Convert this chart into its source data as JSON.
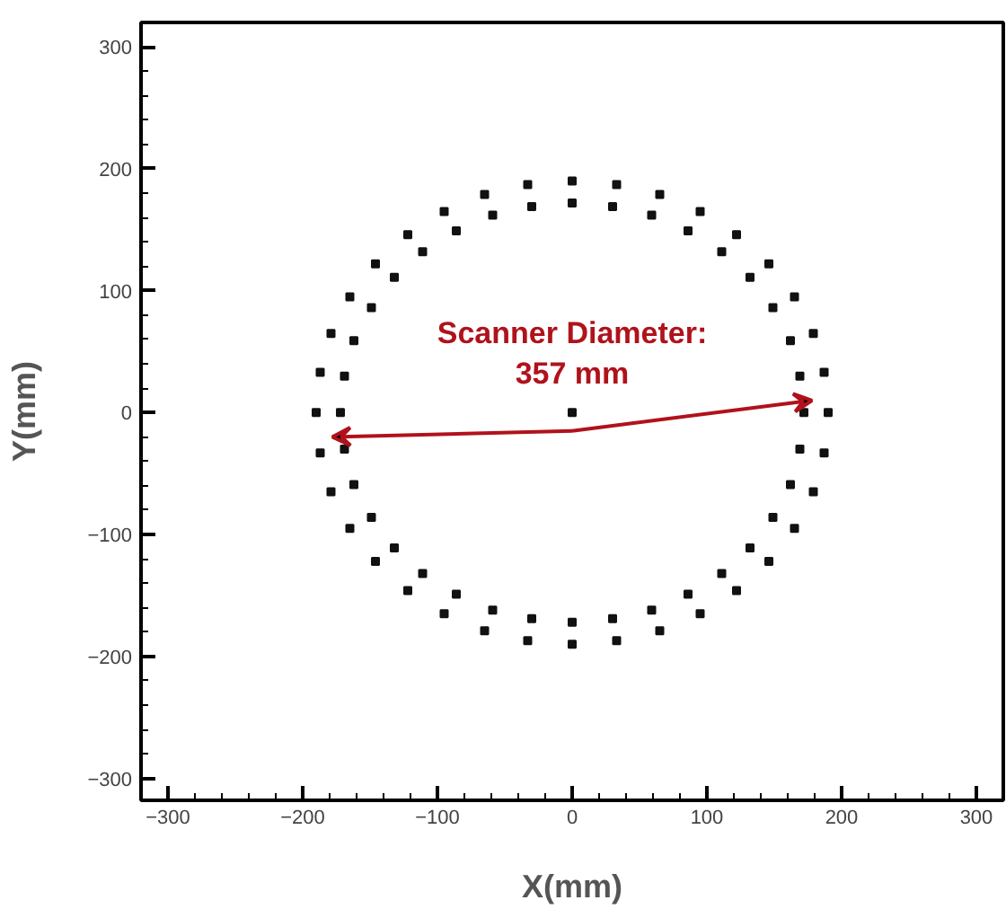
{
  "chart_data": {
    "type": "scatter",
    "xlabel": "X(mm)",
    "ylabel": "Y(mm)",
    "xlim": [
      -320,
      320
    ],
    "ylim": [
      -318,
      320
    ],
    "xticks": [
      -300,
      -200,
      -100,
      0,
      100,
      200,
      300
    ],
    "yticks": [
      -300,
      -200,
      -100,
      0,
      100,
      200,
      300
    ],
    "grid": false,
    "marker": "square",
    "annotations": [
      {
        "text": "Scanner Diameter:\n357 mm",
        "x": 0,
        "y": 0
      }
    ],
    "series": [
      {
        "color": "#111111",
        "x": [
          190,
          187,
          179,
          165,
          146,
          122,
          95,
          65,
          33,
          0,
          -33,
          -65,
          -95,
          -122,
          -146,
          -165,
          -179,
          -187,
          -190,
          -187,
          -179,
          -165,
          -146,
          -122,
          -95,
          -65,
          -33,
          0,
          33,
          65,
          95,
          122,
          146,
          165,
          179,
          187,
          172,
          169,
          162,
          149,
          132,
          111,
          86,
          59,
          30,
          0,
          -30,
          -59,
          -86,
          -111,
          -132,
          -149,
          -162,
          -169,
          -172,
          -169,
          -162,
          -149,
          -132,
          -111,
          -86,
          -59,
          -30,
          0,
          30,
          59,
          86,
          111,
          132,
          149,
          162,
          169,
          0
        ],
        "values": [
          0,
          33,
          65,
          95,
          122,
          146,
          165,
          179,
          187,
          190,
          187,
          179,
          165,
          146,
          122,
          95,
          65,
          33,
          0,
          -33,
          -65,
          -95,
          -122,
          -146,
          -165,
          -179,
          -187,
          -190,
          -187,
          -179,
          -165,
          -146,
          -122,
          -95,
          -65,
          -33,
          0,
          30,
          59,
          86,
          111,
          132,
          149,
          162,
          169,
          172,
          169,
          162,
          149,
          132,
          111,
          86,
          59,
          30,
          0,
          -30,
          -59,
          -86,
          -111,
          -132,
          -149,
          -162,
          -169,
          -172,
          -169,
          -162,
          -149,
          -132,
          -111,
          -86,
          -59,
          -30,
          0
        ]
      }
    ]
  }
}
